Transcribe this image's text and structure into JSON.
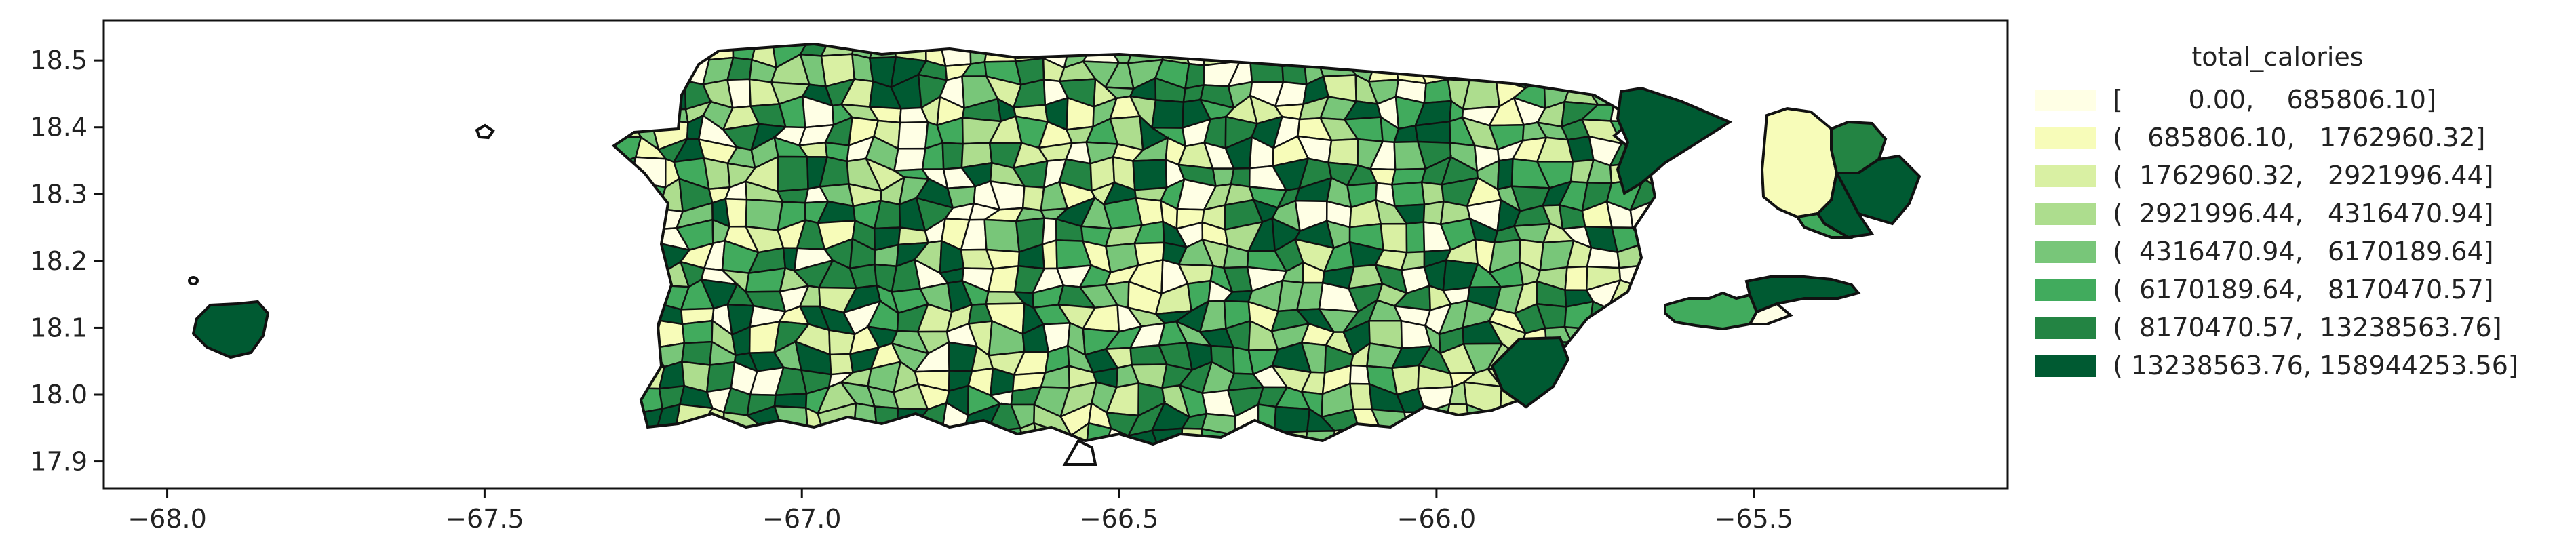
{
  "chart_data": {
    "type": "choropleth",
    "title": "",
    "xlabel": "",
    "ylabel": "",
    "xlim": [
      -68.1,
      -65.1
    ],
    "ylim": [
      17.86,
      18.56
    ],
    "x_ticks": [
      "−68.0",
      "−67.5",
      "−67.0",
      "−66.5",
      "−66.0",
      "−65.5"
    ],
    "y_ticks": [
      "17.9",
      "18.0",
      "18.1",
      "18.2",
      "18.3",
      "18.4",
      "18.5"
    ],
    "legend": {
      "title": "total_calories",
      "placement": "right",
      "classes": [
        {
          "label": "[        0.00,    685806.10]",
          "color": "#ffffe5"
        },
        {
          "label": "(   685806.10,   1762960.32]",
          "color": "#f7fcb9"
        },
        {
          "label": "(  1762960.32,   2921996.44]",
          "color": "#d9f0a3"
        },
        {
          "label": "(  2921996.44,   4316470.94]",
          "color": "#addd8e"
        },
        {
          "label": "(  4316470.94,   6170189.64]",
          "color": "#78c679"
        },
        {
          "label": "(  6170189.64,   8170470.57]",
          "color": "#41ab5d"
        },
        {
          "label": "(  8170470.57,  13238563.76]",
          "color": "#238443"
        },
        {
          "label": "( 13238563.76, 158944253.56]",
          "color": "#005a32"
        }
      ]
    }
  }
}
